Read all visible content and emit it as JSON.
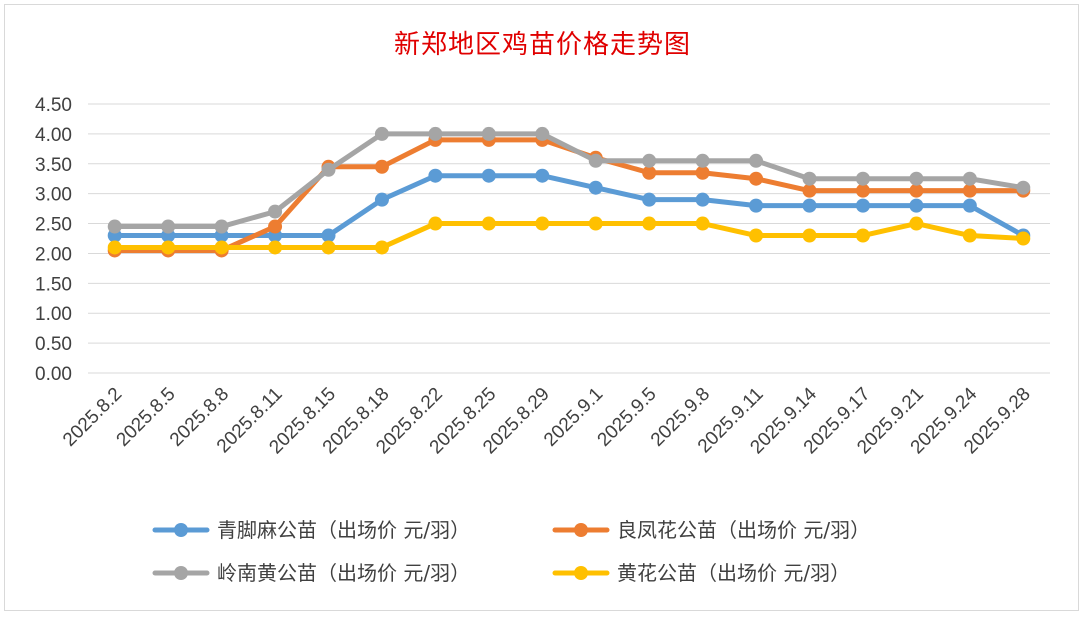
{
  "chart_data": {
    "type": "line",
    "title": "新郑地区鸡苗价格走势图",
    "xlabel": "",
    "ylabel": "",
    "ylim": [
      0,
      4.5
    ],
    "ytick_step": 0.5,
    "yticks": [
      "0.00",
      "0.50",
      "1.00",
      "1.50",
      "2.00",
      "2.50",
      "3.00",
      "3.50",
      "4.00",
      "4.50"
    ],
    "grid": true,
    "legend_position": "bottom",
    "categories": [
      "2025.8.2",
      "2025.8.5",
      "2025.8.8",
      "2025.8.11",
      "2025.8.15",
      "2025.8.18",
      "2025.8.22",
      "2025.8.25",
      "2025.8.29",
      "2025.9.1",
      "2025.9.5",
      "2025.9.8",
      "2025.9.11",
      "2025.9.14",
      "2025.9.17",
      "2025.9.21",
      "2025.9.24",
      "2025.9.28"
    ],
    "series": [
      {
        "name": "青脚麻公苗（出场价 元/羽）",
        "color": "#5b9bd5",
        "values": [
          2.3,
          2.3,
          2.3,
          2.3,
          2.3,
          2.9,
          3.3,
          3.3,
          3.3,
          3.1,
          2.9,
          2.9,
          2.8,
          2.8,
          2.8,
          2.8,
          2.8,
          2.3
        ]
      },
      {
        "name": "良凤花公苗（出场价 元/羽）",
        "color": "#ed7d31",
        "values": [
          2.05,
          2.05,
          2.05,
          2.45,
          3.45,
          3.45,
          3.9,
          3.9,
          3.9,
          3.6,
          3.35,
          3.35,
          3.25,
          3.05,
          3.05,
          3.05,
          3.05,
          3.05
        ]
      },
      {
        "name": "岭南黄公苗（出场价 元/羽）",
        "color": "#a5a5a5",
        "values": [
          2.45,
          2.45,
          2.45,
          2.7,
          3.4,
          4.0,
          4.0,
          4.0,
          4.0,
          3.55,
          3.55,
          3.55,
          3.55,
          3.25,
          3.25,
          3.25,
          3.25,
          3.1
        ]
      },
      {
        "name": "黄花公苗（出场价 元/羽）",
        "color": "#ffc000",
        "values": [
          2.1,
          2.1,
          2.1,
          2.1,
          2.1,
          2.1,
          2.5,
          2.5,
          2.5,
          2.5,
          2.5,
          2.5,
          2.3,
          2.3,
          2.3,
          2.5,
          2.3,
          2.25
        ]
      }
    ]
  }
}
